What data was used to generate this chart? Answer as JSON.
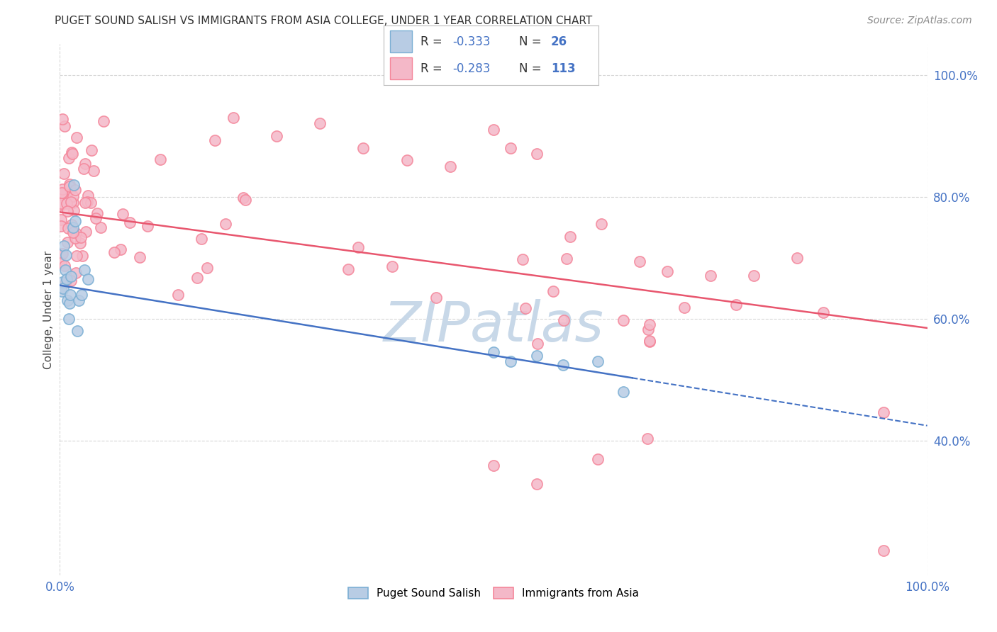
{
  "title": "PUGET SOUND SALISH VS IMMIGRANTS FROM ASIA COLLEGE, UNDER 1 YEAR CORRELATION CHART",
  "source": "Source: ZipAtlas.com",
  "ylabel": "College, Under 1 year",
  "xlim": [
    0.0,
    1.0
  ],
  "ylim": [
    0.18,
    1.05
  ],
  "plot_ylim": [
    0.18,
    1.05
  ],
  "xtick_positions": [
    0.0,
    1.0
  ],
  "xtick_labels": [
    "0.0%",
    "100.0%"
  ],
  "ytick_positions": [
    0.4,
    0.6,
    0.8,
    1.0
  ],
  "ytick_labels": [
    "40.0%",
    "60.0%",
    "80.0%",
    "100.0%"
  ],
  "background_color": "#ffffff",
  "grid_color": "#cccccc",
  "watermark_text": "ZIPatlas",
  "watermark_color": "#c8d8e8",
  "color_blue_scatter_face": "#b8cce4",
  "color_blue_scatter_edge": "#7bafd4",
  "color_pink_scatter_face": "#f4b8c8",
  "color_pink_scatter_edge": "#f4869a",
  "color_blue_line": "#4472c4",
  "color_pink_line": "#e8566e",
  "R1": -0.333,
  "N1": 26,
  "R2": -0.283,
  "N2": 113,
  "blue_line_x0": 0.0,
  "blue_line_y0": 0.655,
  "blue_line_x1": 1.0,
  "blue_line_y1": 0.425,
  "blue_line_solid_end": 0.66,
  "pink_line_x0": 0.0,
  "pink_line_y0": 0.775,
  "pink_line_x1": 1.0,
  "pink_line_y1": 0.585,
  "title_color": "#333333",
  "source_color": "#888888",
  "axis_label_color": "#4472c4",
  "ylabel_color": "#444444"
}
